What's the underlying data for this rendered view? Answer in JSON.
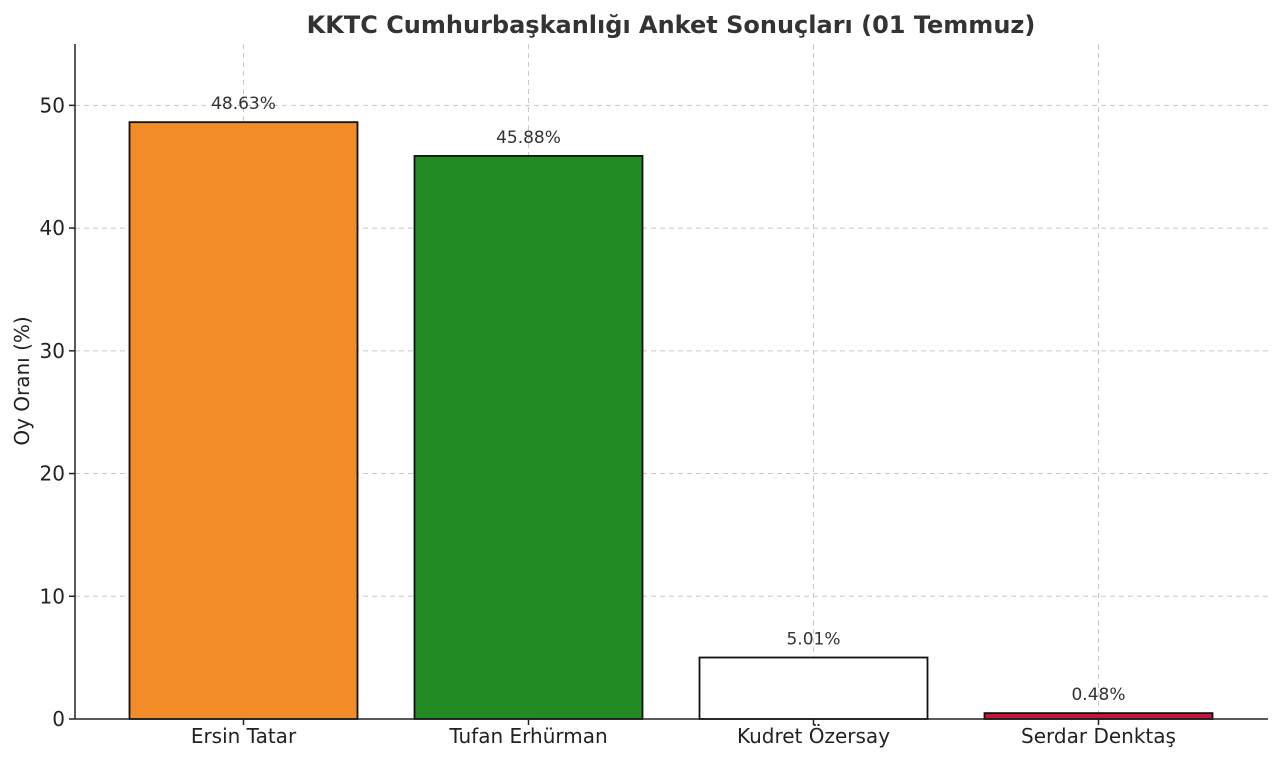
{
  "chart_data": {
    "type": "bar",
    "title": "KKTC Cumhurbaşkanlığı Anket Sonuçları (01 Temmuz)",
    "xlabel": "",
    "ylabel": "Oy Oranı (%)",
    "categories": [
      "Ersin Tatar",
      "Tufan Erhürman",
      "Kudret Özersay",
      "Serdar Denktaş"
    ],
    "values": [
      48.63,
      45.88,
      5.01,
      0.48
    ],
    "value_labels": [
      "48.63%",
      "45.88%",
      "5.01%",
      "0.48%"
    ],
    "colors": [
      "#f28c28",
      "#228b22",
      "#ffffff",
      "#c8143c"
    ],
    "ylim": [
      0,
      55
    ],
    "yticks": [
      0,
      10,
      20,
      30,
      40,
      50
    ],
    "grid": true,
    "legend": "none"
  }
}
